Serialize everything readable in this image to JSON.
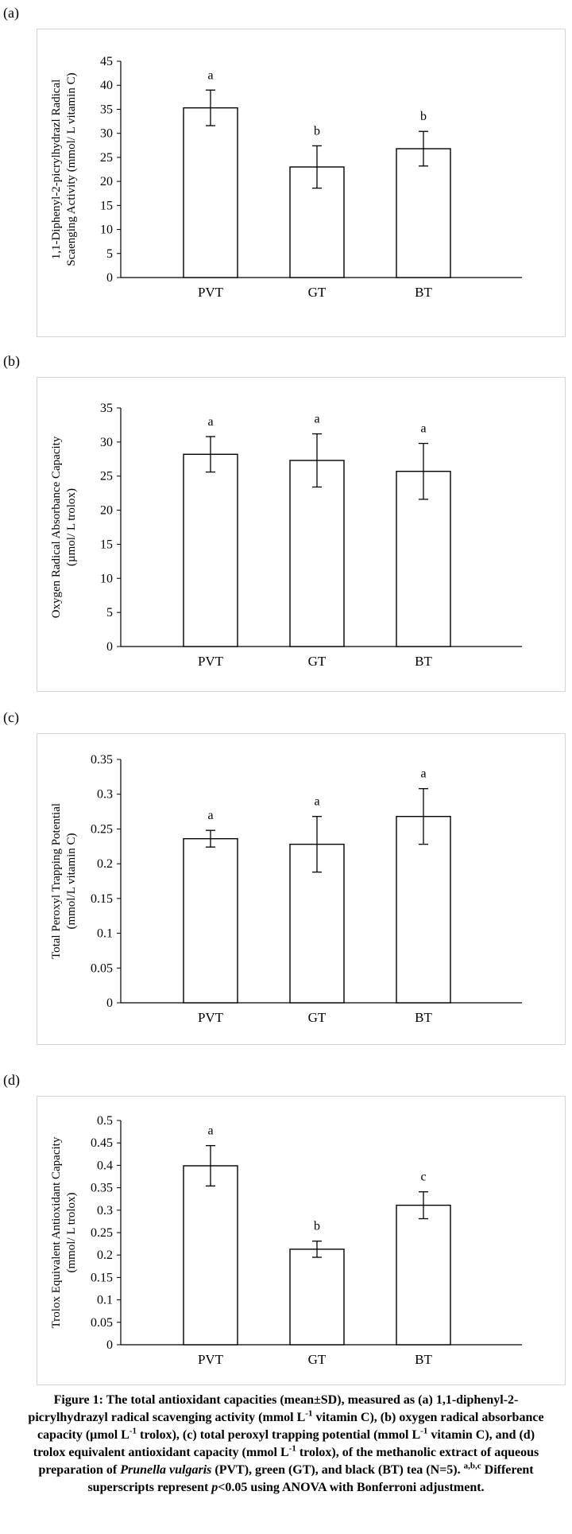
{
  "chart_data": [
    {
      "panel_label": "(a)",
      "type": "bar",
      "ylabel_lines": [
        "1,1-Diphenyl-2-picrylhydrazl Radical",
        "Scaenging Activity (mmol/ L vitamin C)"
      ],
      "categories": [
        "PVT",
        "GT",
        "BT"
      ],
      "values": [
        35.3,
        23.0,
        26.8
      ],
      "errors": [
        3.7,
        4.4,
        3.6
      ],
      "letters": [
        "a",
        "b",
        "b"
      ],
      "ylim": [
        0,
        45
      ],
      "yticks": [
        "0",
        "5",
        "10",
        "15",
        "20",
        "25",
        "30",
        "35",
        "40",
        "45"
      ],
      "grid": false
    },
    {
      "panel_label": "(b)",
      "type": "bar",
      "ylabel_lines": [
        "Oxygen Radical Absorbance Capacity",
        "(µmol/ L trolox)"
      ],
      "categories": [
        "PVT",
        "GT",
        "BT"
      ],
      "values": [
        28.2,
        27.3,
        25.7
      ],
      "errors": [
        2.6,
        3.9,
        4.1
      ],
      "letters": [
        "a",
        "a",
        "a"
      ],
      "ylim": [
        0,
        35
      ],
      "yticks": [
        "0",
        "5",
        "10",
        "15",
        "20",
        "25",
        "30",
        "35"
      ],
      "grid": false
    },
    {
      "panel_label": "(c)",
      "type": "bar",
      "ylabel_lines": [
        "Total Peroxyl Trapping Potential",
        "(mmol/L vitamin C)"
      ],
      "categories": [
        "PVT",
        "GT",
        "BT"
      ],
      "values": [
        0.236,
        0.228,
        0.268
      ],
      "errors": [
        0.012,
        0.04,
        0.04
      ],
      "letters": [
        "a",
        "a",
        "a"
      ],
      "ylim": [
        0,
        0.35
      ],
      "yticks": [
        "0",
        "0.05",
        "0.1",
        "0.15",
        "0.2",
        "0.25",
        "0.3",
        "0.35"
      ],
      "grid": false
    },
    {
      "panel_label": "(d)",
      "type": "bar",
      "ylabel_lines": [
        "Trolox Equivalent Antioxidant Capacity",
        "(mmol/ L trolox)"
      ],
      "categories": [
        "PVT",
        "GT",
        "BT"
      ],
      "values": [
        0.399,
        0.213,
        0.311
      ],
      "errors": [
        0.045,
        0.018,
        0.03
      ],
      "letters": [
        "a",
        "b",
        "c"
      ],
      "ylim": [
        0,
        0.5
      ],
      "yticks": [
        "0",
        "0.05",
        "0.1",
        "0.15",
        "0.2",
        "0.25",
        "0.3",
        "0.35",
        "0.4",
        "0.45",
        "0.5"
      ],
      "grid": false
    }
  ],
  "caption": {
    "p1": "Figure 1: The total antioxidant capacities (mean±SD), measured as (a) 1,1-diphenyl-2-picrylhydrazyl radical scavenging activity (mmol L",
    "s1": "-1",
    "p2": " vitamin C), (b) oxygen radical absorbance capacity (µmol L",
    "s2": "-1",
    "p3": " trolox), (c) total peroxyl trapping potential (mmol L",
    "s3": "-1",
    "p4": " vitamin C), and (d) trolox equivalent antioxidant capacity (mmol L",
    "s4": "-1",
    "p5": " trolox), of the methanolic extract of aqueous preparation of ",
    "species": "Prunella vulgaris",
    "p6": " (PVT), green (GT), and black (BT) tea (N=5). ",
    "sup_abc": "a,b,c",
    "p7": " Different superscripts represent ",
    "p_symbol": "p",
    "p8": "<0.05 using ANOVA with Bonferroni adjustment."
  }
}
